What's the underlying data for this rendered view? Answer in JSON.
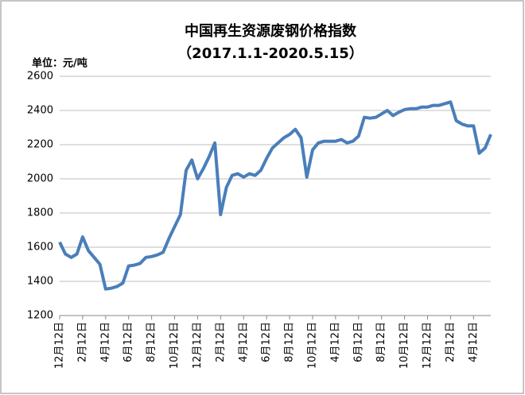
{
  "chart_data": {
    "type": "line",
    "title": "中国再生资源废钢价格指数",
    "subtitle": "（2017.1.1-2020.5.15）",
    "y_label": "单位：元/吨",
    "categories": [
      "12月12日",
      null,
      null,
      null,
      "2月12日",
      null,
      null,
      null,
      "4月12日",
      null,
      null,
      null,
      "6月12日",
      null,
      null,
      null,
      "8月12日",
      null,
      null,
      null,
      "10月12日",
      null,
      null,
      null,
      "12月12日",
      null,
      null,
      null,
      "2月12日",
      null,
      null,
      null,
      "4月12日",
      null,
      null,
      null,
      "6月12日",
      null,
      null,
      null,
      "8月12日",
      null,
      null,
      null,
      "10月12日",
      null,
      null,
      null,
      "4月12日",
      null,
      null,
      null,
      "6月12日",
      null,
      null,
      null,
      "8月12日",
      null,
      null,
      null,
      "10月12日",
      null,
      null,
      null,
      "12月12日",
      null,
      null,
      null,
      "2月12日",
      null,
      null,
      null,
      "4月12日",
      null,
      null,
      null
    ],
    "series": [
      {
        "name": "废钢价格指数",
        "color": "#4a7ebb",
        "values": [
          1630,
          1560,
          1540,
          1560,
          1660,
          1580,
          1540,
          1500,
          1355,
          1360,
          1370,
          1390,
          1490,
          1495,
          1505,
          1540,
          1545,
          1555,
          1570,
          1650,
          1720,
          1790,
          2050,
          2110,
          2000,
          2060,
          2130,
          2210,
          1790,
          1950,
          2020,
          2030,
          2010,
          2030,
          2020,
          2050,
          2120,
          2180,
          2210,
          2240,
          2260,
          2290,
          2240,
          2010,
          2170,
          2210,
          2220,
          2220,
          2220,
          2230,
          2210,
          2220,
          2250,
          2360,
          2355,
          2360,
          2380,
          2400,
          2370,
          2390,
          2405,
          2410,
          2410,
          2420,
          2420,
          2430,
          2430,
          2440,
          2450,
          2340,
          2320,
          2310,
          2310,
          2150,
          2180,
          2260
        ]
      }
    ],
    "ylim": [
      1200,
      2600
    ],
    "yticks": [
      1200,
      1400,
      1600,
      1800,
      2000,
      2200,
      2400,
      2600
    ],
    "grid": true
  }
}
